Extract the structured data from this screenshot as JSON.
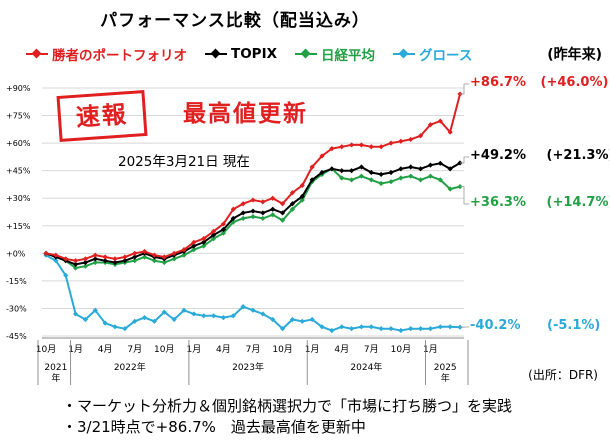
{
  "header": {
    "title": "パフォーマンス比較（配当込み）",
    "year_label": "(昨年来)",
    "stamp": "速報",
    "headline": "最高値更新",
    "as_of": "2025年3月21日 現在",
    "source": "(出所：DFR)"
  },
  "bullets": [
    "・マーケット分析力＆個別銘柄選択力で「市場に打ち勝つ」を実践",
    "・3/21時点で+86.7%　過去最高値を更新中"
  ],
  "colors": {
    "winner": "#e02020",
    "topix": "#000000",
    "nikkei": "#22a045",
    "growth": "#2aaad8"
  },
  "chart_data": {
    "type": "line",
    "ylim": [
      -45,
      90
    ],
    "yticks": [
      "+90%",
      "+75%",
      "+60%",
      "+45%",
      "+30%",
      "+15%",
      "+0%",
      "-15%",
      "-30%",
      "-45%"
    ],
    "ytick_values": [
      90,
      75,
      60,
      45,
      30,
      15,
      0,
      -15,
      -30,
      -45
    ],
    "x_start": "2021-10",
    "n_points": 43,
    "xticks": [
      {
        "label": "10月",
        "idx": 0
      },
      {
        "label": "1月",
        "idx": 3
      },
      {
        "label": "4月",
        "idx": 6
      },
      {
        "label": "7月",
        "idx": 9
      },
      {
        "label": "10月",
        "idx": 12
      },
      {
        "label": "1月",
        "idx": 15
      },
      {
        "label": "4月",
        "idx": 18
      },
      {
        "label": "7月",
        "idx": 21
      },
      {
        "label": "10月",
        "idx": 24
      },
      {
        "label": "1月",
        "idx": 27
      },
      {
        "label": "4月",
        "idx": 30
      },
      {
        "label": "7月",
        "idx": 33
      },
      {
        "label": "10月",
        "idx": 36
      },
      {
        "label": "1月",
        "idx": 39
      }
    ],
    "years": [
      {
        "label": "2021年",
        "start": 0,
        "end": 2
      },
      {
        "label": "2022年",
        "start": 3,
        "end": 14
      },
      {
        "label": "2023年",
        "start": 15,
        "end": 26
      },
      {
        "label": "2024年",
        "start": 27,
        "end": 38
      },
      {
        "label": "2025年",
        "start": 39,
        "end": 42
      }
    ],
    "series": [
      {
        "name": "勝者のポートフォリオ",
        "key": "winner",
        "values": [
          0,
          -1,
          -3,
          -4,
          -3,
          -1,
          -2,
          -3,
          -2,
          0,
          1,
          -1,
          -2,
          0,
          2,
          6,
          8,
          12,
          16,
          24,
          27,
          29,
          28,
          30,
          27,
          33,
          37,
          47,
          53,
          57,
          58,
          59,
          59,
          58,
          58,
          60,
          61,
          62,
          64,
          70,
          72,
          66,
          86.7
        ],
        "label_value": "+86.7%",
        "label_ytd": "(+46.0%)"
      },
      {
        "name": "TOPIX",
        "key": "topix",
        "values": [
          0,
          -2,
          -4,
          -6,
          -5,
          -3,
          -4,
          -5,
          -4,
          -2,
          0,
          -2,
          -3,
          -1,
          1,
          4,
          6,
          10,
          13,
          19,
          22,
          23,
          22,
          24,
          22,
          27,
          31,
          40,
          44,
          46,
          45,
          45,
          47,
          44,
          43,
          44,
          46,
          47,
          46,
          48,
          49,
          46,
          49.2
        ],
        "label_value": "+49.2%",
        "label_ytd": "(+21.3%)"
      },
      {
        "name": "日経平均",
        "key": "nikkei",
        "values": [
          0,
          -2,
          -4,
          -8,
          -7,
          -5,
          -5,
          -6,
          -5,
          -4,
          -2,
          -4,
          -5,
          -3,
          -1,
          2,
          4,
          8,
          11,
          17,
          19,
          20,
          19,
          21,
          18,
          24,
          29,
          39,
          43,
          46,
          41,
          40,
          42,
          40,
          38,
          39,
          41,
          42,
          40,
          42,
          40,
          35,
          36.3
        ],
        "label_value": "+36.3%",
        "label_ytd": "(+14.7%)"
      },
      {
        "name": "グロース",
        "key": "growth",
        "values": [
          -1,
          -4,
          -12,
          -33,
          -36,
          -31,
          -38,
          -40,
          -41,
          -37,
          -35,
          -37,
          -32,
          -36,
          -31,
          -33,
          -34,
          -34,
          -35,
          -34,
          -29,
          -31,
          -33,
          -36,
          -41,
          -36,
          -37,
          -36,
          -40,
          -42,
          -40,
          -41,
          -40,
          -40,
          -41,
          -41,
          -42,
          -41,
          -41,
          -41,
          -40,
          -40,
          -40.2
        ],
        "label_value": "-40.2%",
        "label_ytd": "(-5.1%)"
      }
    ]
  }
}
